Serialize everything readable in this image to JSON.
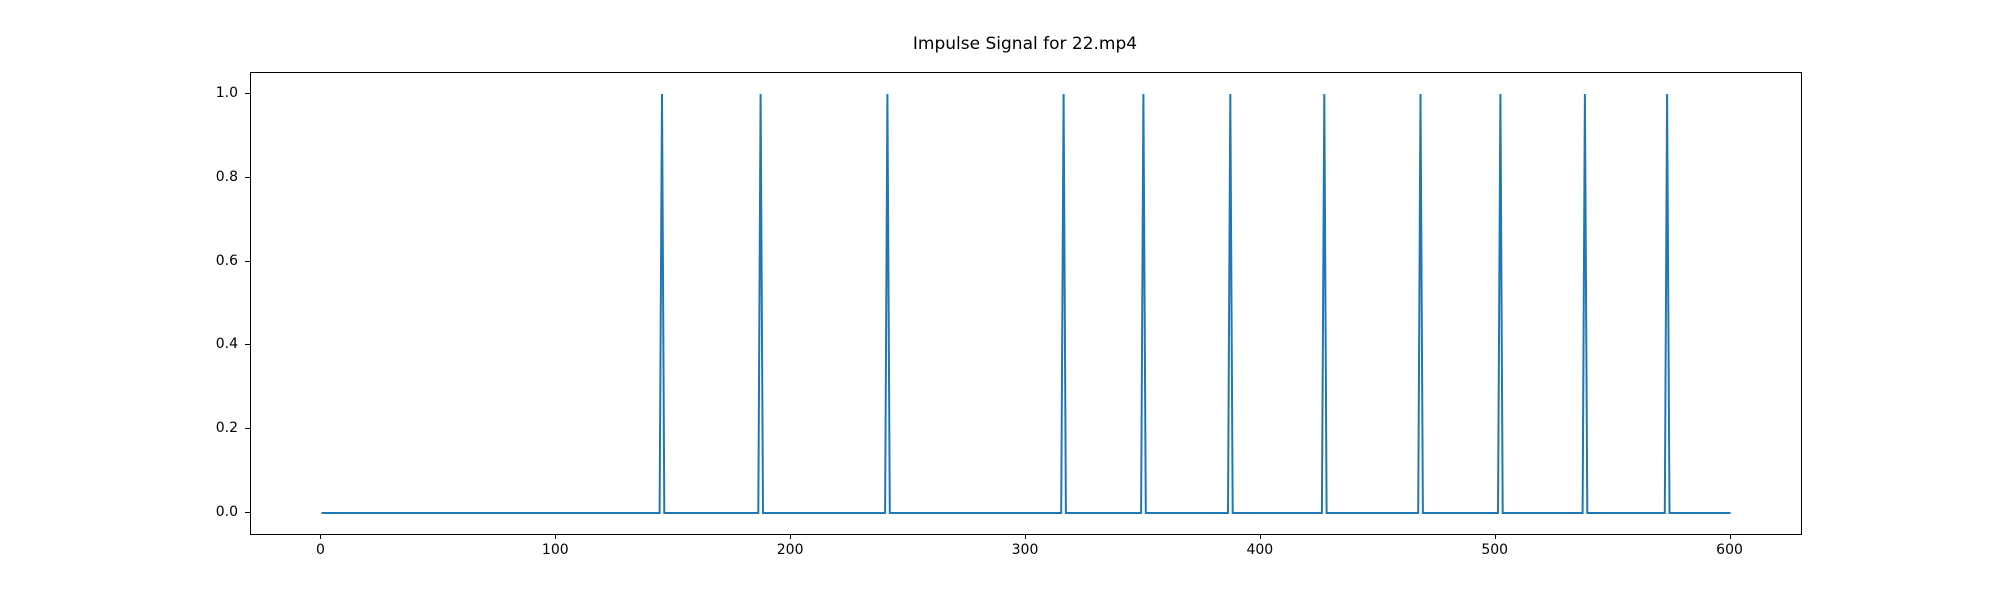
{
  "chart_data": {
    "type": "line",
    "title": "Impulse Signal for 22.mp4",
    "xlabel": "",
    "ylabel": "",
    "x_range": [
      0,
      600
    ],
    "xlim": [
      -30,
      630
    ],
    "ylim": [
      -0.05,
      1.05
    ],
    "x_ticks": [
      0,
      100,
      200,
      300,
      400,
      500,
      600
    ],
    "x_tick_labels": [
      "0",
      "100",
      "200",
      "300",
      "400",
      "500",
      "600"
    ],
    "y_ticks": [
      0.0,
      0.2,
      0.4,
      0.6,
      0.8,
      1.0
    ],
    "y_tick_labels": [
      "0.0",
      "0.2",
      "0.4",
      "0.6",
      "0.8",
      "1.0"
    ],
    "baseline_value": 0,
    "impulse_value": 1,
    "impulse_halfwidth": 1,
    "impulses": [
      145,
      187,
      241,
      316,
      350,
      387,
      427,
      468,
      502,
      538,
      573
    ],
    "line_color": "#1f77b4",
    "spine_color": "#000000",
    "grid": false,
    "legend": "none"
  }
}
